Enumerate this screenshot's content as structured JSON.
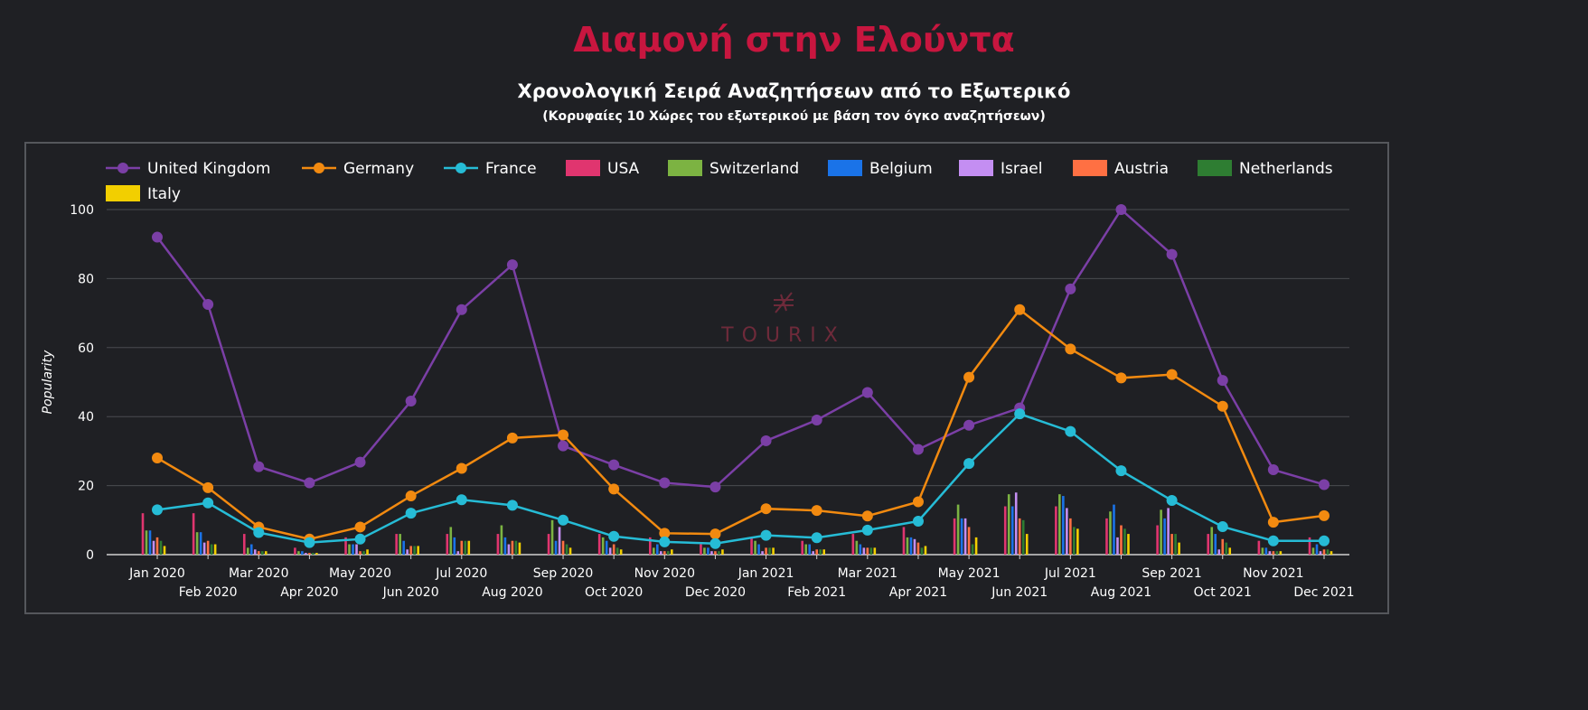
{
  "title": "Διαμονή στην Ελούντα",
  "subtitle": "Χρονολογική Σειρά Αναζητήσεων από το Εξωτερικό",
  "subsubtitle": "(Κορυφαίες 10 Χώρες του εξωτερικού με βάση τον όγκο αναζητήσεων)",
  "watermark": "TOURIX",
  "chart_data": {
    "type": "line+bar",
    "ylabel": "Popularity",
    "ylim": [
      0,
      100
    ],
    "yticks": [
      0,
      20,
      40,
      60,
      80,
      100
    ],
    "grid": true,
    "legend_position": "top",
    "categories": [
      "Jan 2020",
      "Feb 2020",
      "Mar 2020",
      "Apr 2020",
      "May 2020",
      "Jun 2020",
      "Jul 2020",
      "Aug 2020",
      "Sep 2020",
      "Oct 2020",
      "Nov 2020",
      "Dec 2020",
      "Jan 2021",
      "Feb 2021",
      "Mar 2021",
      "Apr 2021",
      "May 2021",
      "Jun 2021",
      "Jul 2021",
      "Aug 2021",
      "Sep 2021",
      "Oct 2021",
      "Nov 2021",
      "Dec 2021"
    ],
    "series": [
      {
        "name": "United Kingdom",
        "kind": "line",
        "color": "#7b3fa6",
        "values": [
          92,
          72.5,
          25.5,
          20.8,
          26.8,
          44.5,
          71,
          84,
          31.5,
          26,
          20.8,
          19.6,
          33,
          39,
          47,
          30.5,
          37.5,
          42.5,
          77,
          100,
          87,
          50.5,
          24.6,
          20.3
        ]
      },
      {
        "name": "Germany",
        "kind": "line",
        "color": "#f28a10",
        "values": [
          28,
          19.4,
          8,
          4.5,
          8,
          17,
          25,
          33.8,
          34.7,
          19,
          6.2,
          6,
          13.3,
          12.8,
          11.2,
          15.3,
          51.4,
          71,
          59.6,
          51.2,
          52.2,
          43,
          9.4,
          11.3
        ]
      },
      {
        "name": "France",
        "kind": "line",
        "color": "#26bcd6",
        "values": [
          13,
          15,
          6.4,
          3.5,
          4.5,
          12,
          15.9,
          14.3,
          10,
          5.3,
          3.7,
          3.2,
          5.6,
          4.9,
          7.1,
          9.7,
          26.4,
          40.8,
          35.7,
          24.3,
          15.7,
          8.1,
          4,
          4
        ]
      },
      {
        "name": "USA",
        "kind": "bar",
        "color": "#e0356f",
        "values": [
          12,
          12,
          6,
          2,
          5,
          6,
          6,
          6,
          6,
          6,
          5,
          3,
          5,
          4,
          6,
          8,
          10.5,
          14,
          14,
          10.5,
          8.5,
          6,
          4,
          5
        ]
      },
      {
        "name": "Switzerland",
        "kind": "bar",
        "color": "#7cb342",
        "values": [
          7,
          6.5,
          2,
          1,
          3,
          6,
          8,
          8.5,
          10,
          5,
          2,
          2,
          4,
          3,
          4,
          5,
          14.5,
          17.5,
          17.5,
          12.5,
          13,
          8,
          2,
          2
        ]
      },
      {
        "name": "Belgium",
        "kind": "bar",
        "color": "#1a73e8",
        "values": [
          7,
          6.5,
          3,
          1,
          3,
          4,
          5,
          5,
          4,
          4,
          3,
          2,
          3,
          3,
          3,
          5,
          10.5,
          14,
          17,
          14.5,
          10.5,
          6,
          2,
          3
        ]
      },
      {
        "name": "Israel",
        "kind": "bar",
        "color": "#c48ef2",
        "values": [
          4,
          3.5,
          1.5,
          0.5,
          3,
          1.5,
          1,
          3,
          8,
          2,
          1,
          1,
          1,
          1,
          2,
          4.5,
          10.5,
          18,
          13.5,
          5,
          13.5,
          1.5,
          1,
          1
        ]
      },
      {
        "name": "Austria",
        "kind": "bar",
        "color": "#ff7043",
        "values": [
          5,
          4,
          1,
          0.5,
          1,
          2.5,
          4,
          4,
          4,
          3,
          1,
          1,
          2,
          1.5,
          2,
          3.5,
          8,
          10.5,
          10.5,
          8.5,
          6,
          4.5,
          1,
          1.5
        ]
      },
      {
        "name": "Netherlands",
        "kind": "bar",
        "color": "#2e7d32",
        "values": [
          4,
          3,
          1,
          0.5,
          1,
          2.5,
          4,
          4,
          3,
          2,
          1,
          1,
          2,
          1.5,
          2,
          2,
          3,
          10,
          8,
          7.5,
          6,
          3.5,
          1,
          1.5
        ]
      },
      {
        "name": "Italy",
        "kind": "bar",
        "color": "#f2cf00",
        "values": [
          2.5,
          3,
          1,
          0.5,
          1.5,
          2.5,
          4,
          3.5,
          2,
          1.5,
          1.5,
          1.5,
          2,
          1.5,
          2,
          2.5,
          5,
          6,
          7.5,
          6,
          3.5,
          2,
          1,
          1
        ]
      }
    ]
  }
}
